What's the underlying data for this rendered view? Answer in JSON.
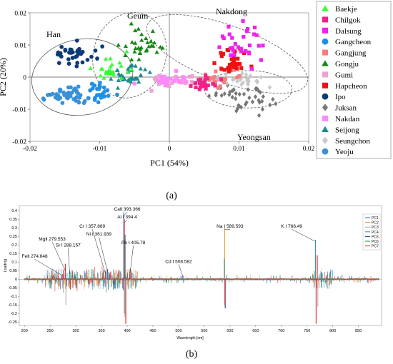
{
  "chart_data": [
    {
      "type": "scatter",
      "panel_label": "(a)",
      "title": "",
      "xlabel": "PC1 (54%)",
      "ylabel": "PC2 (20%)",
      "xlim": [
        -0.02,
        0.02
      ],
      "ylim": [
        -0.02,
        0.02
      ],
      "x_ticks": [
        "-0.02",
        "-0.01",
        "0",
        "0.01",
        "0.02"
      ],
      "y_ticks": [
        "0.02",
        "0.01",
        "0",
        "-0.01",
        "-0.02"
      ],
      "legend_position": "right",
      "groups": [
        "Han",
        "Geum",
        "Nakdong",
        "Yeongsan"
      ],
      "group_ellipses": [
        {
          "name": "Han",
          "cx": -0.0125,
          "cy": 0.0,
          "rx": 0.0073,
          "ry": 0.0118,
          "angle": -10
        },
        {
          "name": "Geum",
          "cx": -0.0057,
          "cy": 0.0068,
          "rx": 0.0052,
          "ry": 0.0135,
          "angle": 18
        },
        {
          "name": "Nakdong",
          "cx": 0.0083,
          "cy": 0.0072,
          "rx": 0.0122,
          "ry": 0.0088,
          "angle": 20
        },
        {
          "name": "Yeongsan",
          "cx": 0.0113,
          "cy": -0.0038,
          "rx": 0.0063,
          "ry": 0.0058,
          "angle": 0
        }
      ],
      "series": [
        {
          "name": "Baekje",
          "marker": "triangle",
          "color": "#33ff33",
          "cx": -0.0085,
          "cy": 0.0025,
          "sx": 0.0012,
          "sy": 0.0018,
          "n": 26
        },
        {
          "name": "Chilgok",
          "marker": "square",
          "color": "#ee2288",
          "cx": 0.0048,
          "cy": -0.0018,
          "sx": 0.0012,
          "sy": 0.0012,
          "n": 24
        },
        {
          "name": "Dalsung",
          "marker": "square",
          "color": "#ee22ee",
          "cx": 0.0098,
          "cy": 0.0105,
          "sx": 0.0018,
          "sy": 0.0032,
          "n": 30
        },
        {
          "name": "Gangcheon",
          "marker": "circle",
          "color": "#1e90e6",
          "cx": -0.0102,
          "cy": -0.0042,
          "sx": 0.0009,
          "sy": 0.0018,
          "n": 28
        },
        {
          "name": "Gangjung",
          "marker": "square",
          "color": "#f08080",
          "cx": 0.0062,
          "cy": -0.0005,
          "sx": 0.0014,
          "sy": 0.0013,
          "n": 22
        },
        {
          "name": "Gongju",
          "marker": "triangle",
          "color": "#138a13",
          "cx": -0.0038,
          "cy": 0.0102,
          "sx": 0.0014,
          "sy": 0.0032,
          "n": 32
        },
        {
          "name": "Gumi",
          "marker": "square",
          "color": "#f0a0d0",
          "cx": 0.0012,
          "cy": -0.0008,
          "sx": 0.0025,
          "sy": 0.001,
          "n": 36
        },
        {
          "name": "Hapcheon",
          "marker": "square",
          "color": "#ee1111",
          "cx": 0.0092,
          "cy": 0.0048,
          "sx": 0.0011,
          "sy": 0.0022,
          "n": 36
        },
        {
          "name": "Ipo",
          "marker": "circle",
          "color": "#0d3a78",
          "cx": -0.0138,
          "cy": 0.0072,
          "sx": 0.0014,
          "sy": 0.0018,
          "n": 38
        },
        {
          "name": "Juksan",
          "marker": "diamond",
          "color": "#777777",
          "cx": 0.0107,
          "cy": -0.0062,
          "sx": 0.0022,
          "sy": 0.0023,
          "n": 42
        },
        {
          "name": "Nakdan",
          "marker": "square",
          "color": "#ff88ff",
          "cx": 0.0002,
          "cy": -0.001,
          "sx": 0.0019,
          "sy": 0.001,
          "n": 22
        },
        {
          "name": "Seijong",
          "marker": "triangle",
          "color": "#1a8c8c",
          "cx": -0.0055,
          "cy": 0.0008,
          "sx": 0.0012,
          "sy": 0.0018,
          "n": 34
        },
        {
          "name": "Seungchon",
          "marker": "diamond",
          "color": "#c8c8c8",
          "cx": 0.0098,
          "cy": -0.0008,
          "sx": 0.002,
          "sy": 0.0015,
          "n": 26
        },
        {
          "name": "Yeoju",
          "marker": "circle",
          "color": "#3a90d8",
          "cx": -0.0145,
          "cy": -0.0058,
          "sx": 0.0014,
          "sy": 0.0014,
          "n": 44
        }
      ]
    },
    {
      "type": "line",
      "panel_label": "(b)",
      "title": "",
      "xlabel": "Wavelength [nm]",
      "ylabel": "Loading",
      "xlim": [
        190,
        895
      ],
      "ylim": [
        -0.27,
        0.43
      ],
      "x_ticks": [
        "200",
        "250",
        "300",
        "350",
        "400",
        "450",
        "500",
        "550",
        "600",
        "650",
        "700",
        "750",
        "800",
        "850"
      ],
      "y_ticks": [
        "0.4",
        "0.35",
        "0.3",
        "0.25",
        "0.2",
        "0.15",
        "0.1",
        "0.05",
        "0",
        "-0.05",
        "-0.1",
        "-0.15",
        "-0.2",
        "-0.25"
      ],
      "legend_position": "top-right",
      "series": [
        {
          "name": "PC1",
          "color": "#2a6fbf"
        },
        {
          "name": "PC2",
          "color": "#e8a030"
        },
        {
          "name": "PC3",
          "color": "#b0b0b0"
        },
        {
          "name": "PC4",
          "color": "#2a9a9a"
        },
        {
          "name": "PC5",
          "color": "#1a3a7a"
        },
        {
          "name": "PC6",
          "color": "#1a8a3a"
        },
        {
          "name": "PC7",
          "color": "#e02020"
        }
      ],
      "peaks": [
        {
          "wl": 274.648,
          "h": 0.03,
          "neg": -0.08,
          "c": 6
        },
        {
          "wl": 279.553,
          "h": 0.09,
          "neg": -0.15,
          "c": 6
        },
        {
          "wl": 288.157,
          "h": 0.05,
          "neg": -0.06,
          "c": 3
        },
        {
          "wl": 357.869,
          "h": 0.05,
          "neg": -0.08,
          "c": 6
        },
        {
          "wl": 361.939,
          "h": 0.06,
          "neg": -0.06,
          "c": 0
        },
        {
          "wl": 393.366,
          "h": 0.39,
          "neg": -0.2,
          "c": 0
        },
        {
          "wl": 394.4,
          "h": 0.35,
          "neg": -0.22,
          "c": 6
        },
        {
          "wl": 396.1,
          "h": 0.26,
          "neg": -0.26,
          "c": 3
        },
        {
          "wl": 405.78,
          "h": 0.06,
          "neg": -0.05,
          "c": 6
        },
        {
          "wl": 508.582,
          "h": 0.02,
          "neg": -0.02,
          "c": 0
        },
        {
          "wl": 589.593,
          "h": 0.3,
          "neg": -0.17,
          "c": 1
        },
        {
          "wl": 589.0,
          "h": 0.12,
          "neg": -0.15,
          "c": 3
        },
        {
          "wl": 766.49,
          "h": 0.23,
          "neg": -0.26,
          "c": 3
        },
        {
          "wl": 769.9,
          "h": 0.14,
          "neg": -0.16,
          "c": 6
        },
        {
          "wl": 777.4,
          "h": 0.04,
          "neg": -0.05,
          "c": 0
        }
      ],
      "annotations": [
        {
          "text": "CaⅡ 393.366",
          "x": 400,
          "y": 0.4,
          "target_wl": 393.366,
          "target_y": 0.37
        },
        {
          "text": "Al Ⅰ 394.4",
          "x": 400,
          "y": 0.355,
          "target_wl": 394.4,
          "target_y": 0.33
        },
        {
          "text": "Cr Ⅰ 357.869",
          "x": 332,
          "y": 0.3,
          "target_wl": 357.869,
          "target_y": 0.03
        },
        {
          "text": "Ni Ⅰ 361.939",
          "x": 345,
          "y": 0.255,
          "target_wl": 361.939,
          "target_y": 0.04
        },
        {
          "text": "Pb Ⅰ 405.78",
          "x": 412,
          "y": 0.205,
          "target_wl": 405.78,
          "target_y": 0.04
        },
        {
          "text": "MgⅡ 279.553",
          "x": 254,
          "y": 0.225,
          "target_wl": 279.553,
          "target_y": 0.05
        },
        {
          "text": "Si Ⅰ 288.157",
          "x": 285,
          "y": 0.19,
          "target_wl": 288.157,
          "target_y": 0.03
        },
        {
          "text": "FeⅡ 274.648",
          "x": 220,
          "y": 0.125,
          "target_wl": 274.648,
          "target_y": 0.02
        },
        {
          "text": "Cd Ⅰ 508.582",
          "x": 500,
          "y": 0.095,
          "target_wl": 508.582,
          "target_y": 0.015
        },
        {
          "text": "Na Ⅰ 589.593",
          "x": 600,
          "y": 0.3,
          "target_wl": 589.593,
          "target_y": 0.29
        },
        {
          "text": "K Ⅰ 766.49",
          "x": 720,
          "y": 0.3,
          "target_wl": 766.49,
          "target_y": 0.22
        }
      ]
    }
  ]
}
